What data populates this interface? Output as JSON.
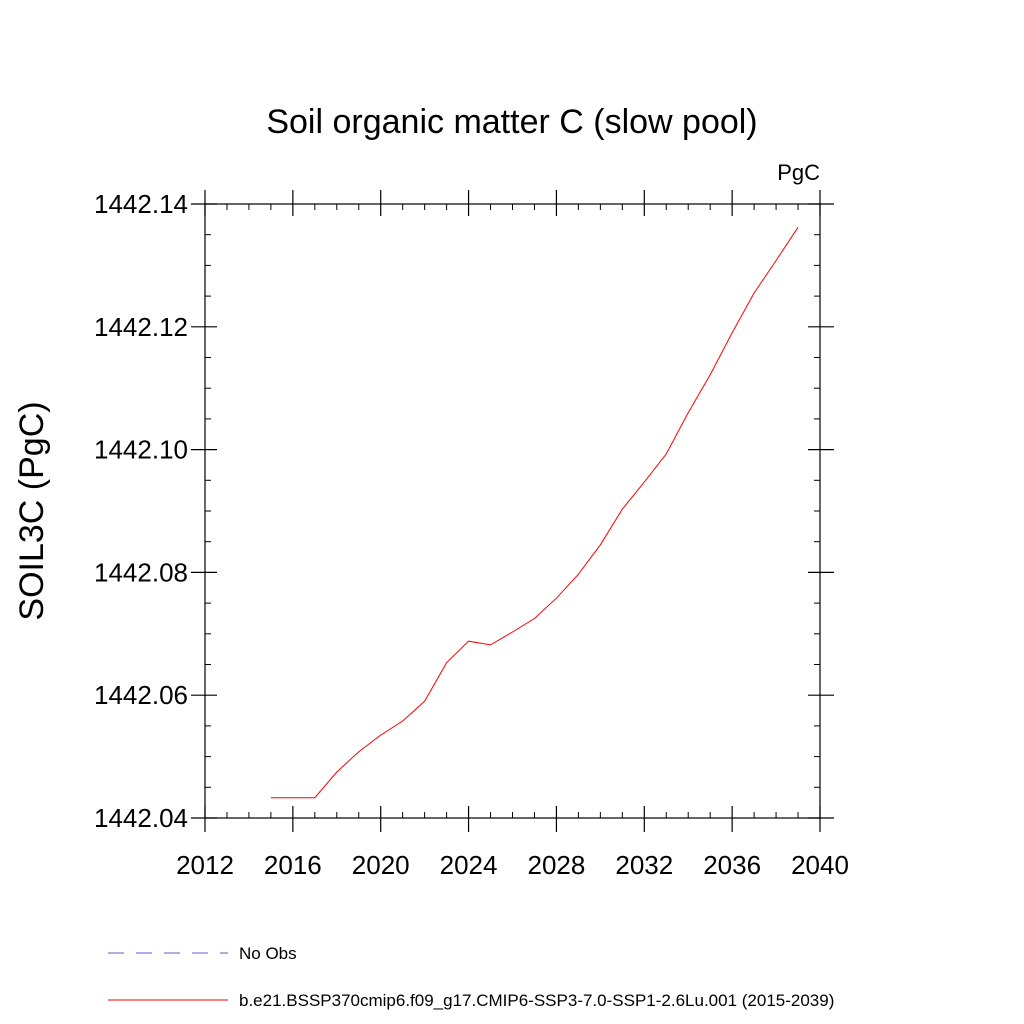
{
  "chart_data": {
    "type": "line",
    "title": "Soil organic matter C (slow pool)",
    "units_label": "PgC",
    "ylabel": "SOIL3C  (PgC)",
    "xlabel": "",
    "xlim": [
      2012,
      2040
    ],
    "ylim": [
      1442.04,
      1442.14
    ],
    "x_ticks": [
      2012,
      2016,
      2020,
      2024,
      2028,
      2032,
      2036,
      2040
    ],
    "x_tick_labels": [
      "2012",
      "2016",
      "2020",
      "2024",
      "2028",
      "2032",
      "2036",
      "2040"
    ],
    "x_minor_step": 1,
    "y_ticks": [
      1442.04,
      1442.06,
      1442.08,
      1442.1,
      1442.12,
      1442.14
    ],
    "y_tick_labels": [
      "1442.04",
      "1442.06",
      "1442.08",
      "1442.10",
      "1442.12",
      "1442.14"
    ],
    "y_minor_step": 0.005,
    "grid": false,
    "legend_position": "bottom",
    "series": [
      {
        "name": "b.e21.BSSP370cmip6.f09_g17.CMIP6-SSP3-7.0-SSP1-2.6Lu.001 (2015-2039)",
        "color": "#ff0000",
        "dash": "solid",
        "x": [
          2015,
          2016,
          2017,
          2018,
          2019,
          2020,
          2021,
          2022,
          2023,
          2024,
          2025,
          2026,
          2027,
          2028,
          2029,
          2030,
          2031,
          2032,
          2033,
          2034,
          2035,
          2036,
          2037,
          2038,
          2039
        ],
        "y": [
          1442.0433,
          1442.0433,
          1442.0433,
          1442.0475,
          1442.0508,
          1442.0535,
          1442.0558,
          1442.059,
          1442.0653,
          1442.0688,
          1442.0682,
          1442.0703,
          1442.0725,
          1442.0758,
          1442.0797,
          1442.0845,
          1442.0903,
          1442.0947,
          1442.0993,
          1442.106,
          1442.1122,
          1442.119,
          1442.1255,
          1442.1308,
          1442.1362
        ]
      }
    ],
    "legend": [
      {
        "label": "No Obs",
        "color": "#6a5acd",
        "dash": "dashed"
      },
      {
        "label": "b.e21.BSSP370cmip6.f09_g17.CMIP6-SSP3-7.0-SSP1-2.6Lu.001 (2015-2039)",
        "color": "#ff0000",
        "dash": "solid"
      }
    ]
  }
}
